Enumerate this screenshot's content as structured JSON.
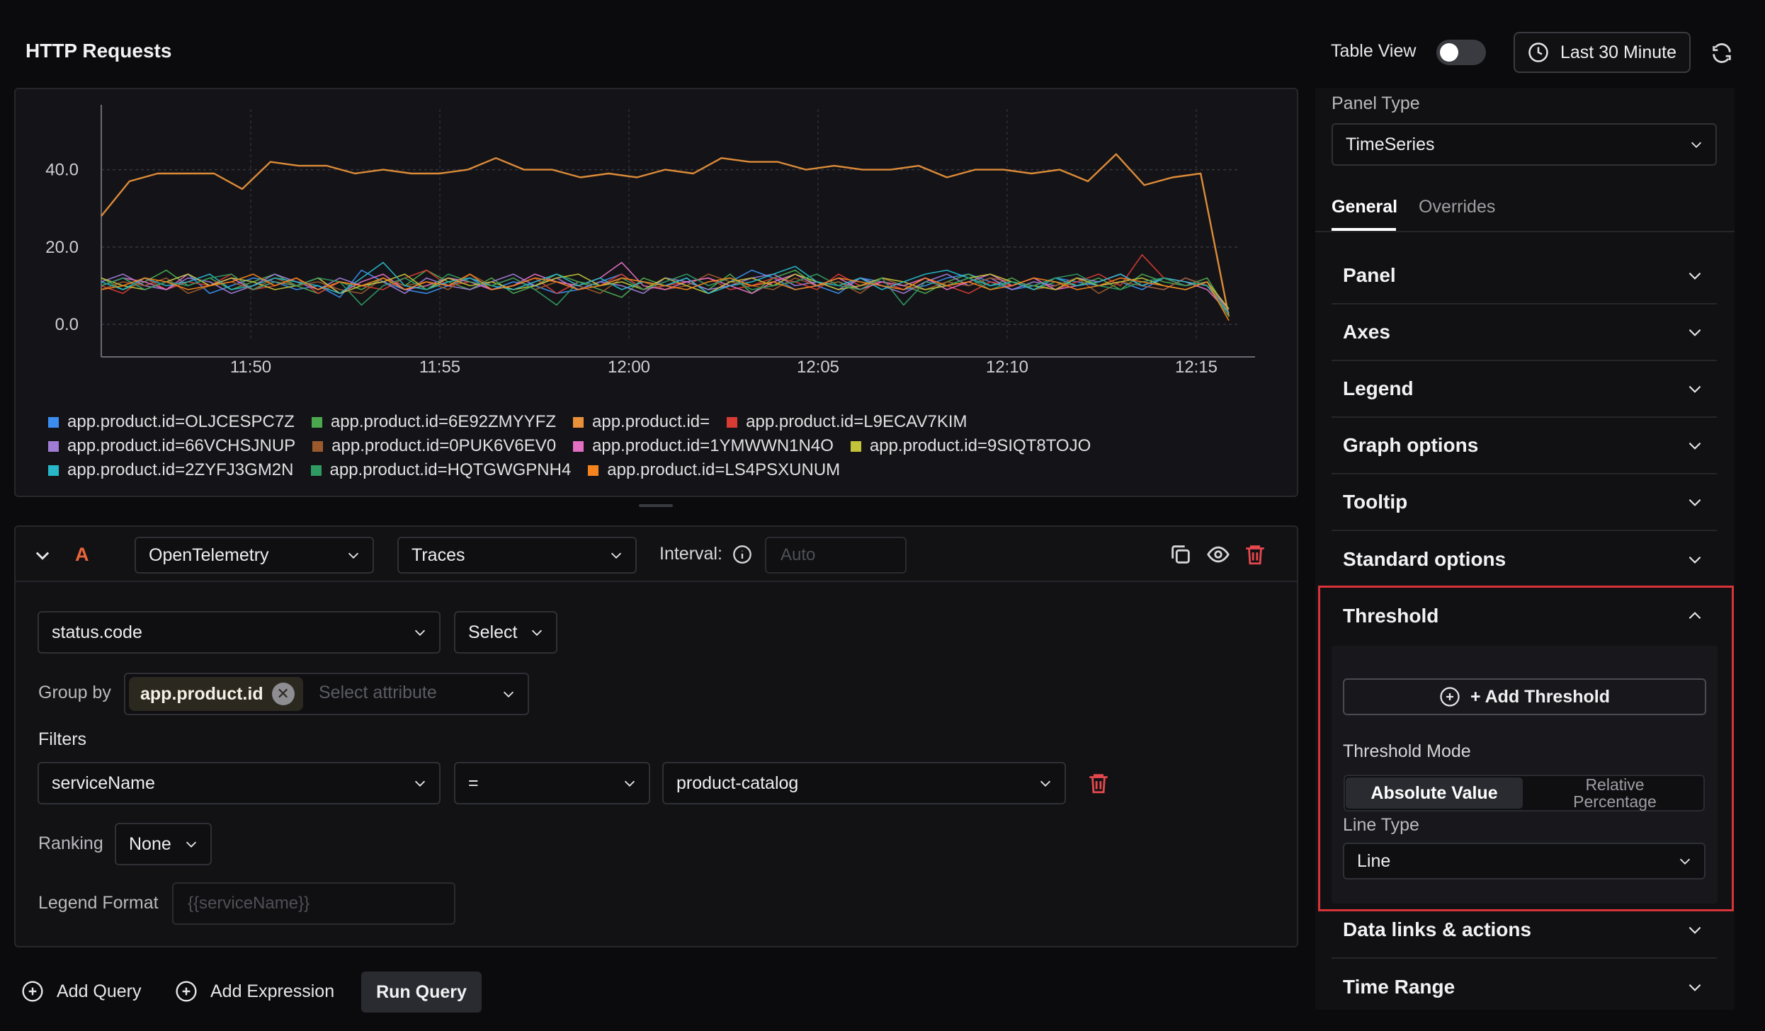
{
  "header": {
    "title": "HTTP Requests",
    "table_view_label": "Table View",
    "time_range": "Last 30 Minute"
  },
  "chart_data": {
    "type": "line",
    "title": "",
    "xlabel": "",
    "ylabel": "",
    "x_ticks": [
      "11:50",
      "11:55",
      "12:00",
      "12:05",
      "12:10",
      "12:15"
    ],
    "y_ticks": [
      "0.0",
      "20.0",
      "40.0"
    ],
    "ylim": [
      -4,
      52
    ],
    "grid": true,
    "legend_position": "bottom-left",
    "series": [
      {
        "name": "app.product.id=OLJCESPC7Z",
        "color": "#3b8ef0",
        "values": [
          10,
          12,
          9,
          11,
          13,
          8,
          10,
          12,
          11,
          9,
          10,
          7,
          14,
          11,
          9,
          8,
          10,
          12,
          9,
          11,
          10,
          8,
          9,
          11,
          13,
          9,
          10,
          12,
          8,
          11,
          14,
          12,
          9,
          10,
          8,
          12,
          11,
          9,
          10,
          12,
          13,
          11,
          9,
          10,
          12,
          11,
          10,
          11,
          9,
          12,
          10,
          11,
          4
        ]
      },
      {
        "name": "app.product.id=6E92ZMYYFZ",
        "color": "#4ca84f",
        "values": [
          12,
          9,
          11,
          14,
          10,
          12,
          9,
          11,
          13,
          10,
          8,
          11,
          9,
          12,
          10,
          14,
          11,
          9,
          12,
          8,
          10,
          13,
          11,
          9,
          7,
          12,
          10,
          11,
          9,
          13,
          8,
          12,
          14,
          10,
          11,
          9,
          12,
          10,
          8,
          11,
          13,
          10,
          12,
          9,
          11,
          10,
          12,
          9,
          13,
          11,
          10,
          12,
          3
        ]
      },
      {
        "name": "app.product.id=",
        "color": "#e8913a",
        "values": [
          28,
          37,
          39,
          39,
          39,
          35,
          42,
          41,
          41,
          39,
          40,
          39,
          39,
          40,
          43,
          40,
          40,
          38,
          39,
          38,
          40,
          39,
          43,
          42,
          42,
          40,
          41,
          40,
          40,
          41,
          38,
          40,
          40,
          39,
          40,
          37,
          44,
          36,
          38,
          39,
          2
        ]
      },
      {
        "name": "app.product.id=L9ECAV7KIM",
        "color": "#d83a34",
        "values": [
          10,
          8,
          12,
          9,
          11,
          10,
          13,
          9,
          10,
          12,
          8,
          11,
          10,
          9,
          12,
          14,
          10,
          11,
          9,
          10,
          12,
          8,
          11,
          10,
          13,
          9,
          10,
          11,
          12,
          9,
          10,
          12,
          11,
          9,
          13,
          10,
          11,
          9,
          12,
          10,
          8,
          11,
          10,
          12,
          9,
          11,
          13,
          10,
          18,
          12,
          10,
          11,
          3
        ]
      },
      {
        "name": "app.product.id=66VCHSJNUP",
        "color": "#a07cd6",
        "values": [
          11,
          13,
          10,
          9,
          12,
          11,
          8,
          10,
          13,
          11,
          9,
          12,
          10,
          11,
          8,
          12,
          10,
          9,
          11,
          13,
          10,
          12,
          9,
          11,
          10,
          8,
          12,
          11,
          9,
          10,
          12,
          13,
          10,
          11,
          9,
          12,
          10,
          8,
          11,
          13,
          10,
          12,
          9,
          11,
          10,
          12,
          11,
          13,
          10,
          9,
          12,
          10,
          4
        ]
      },
      {
        "name": "app.product.id=0PUK6V6EV0",
        "color": "#9c5a2c",
        "values": [
          9,
          11,
          10,
          12,
          8,
          10,
          11,
          9,
          12,
          10,
          11,
          9,
          8,
          12,
          10,
          11,
          9,
          13,
          10,
          12,
          9,
          11,
          10,
          8,
          12,
          11,
          9,
          10,
          13,
          11,
          10,
          9,
          12,
          10,
          11,
          8,
          12,
          10,
          9,
          11,
          10,
          12,
          11,
          9,
          10,
          12,
          8,
          11,
          10,
          9,
          12,
          10,
          2
        ]
      },
      {
        "name": "app.product.id=1YMWWN1N4O",
        "color": "#e36fc3",
        "values": [
          10,
          12,
          11,
          9,
          13,
          10,
          12,
          9,
          11,
          10,
          12,
          8,
          11,
          13,
          9,
          10,
          12,
          11,
          9,
          10,
          13,
          11,
          10,
          12,
          16,
          10,
          9,
          11,
          12,
          10,
          8,
          11,
          13,
          10,
          12,
          9,
          11,
          10,
          12,
          9,
          11,
          13,
          10,
          12,
          9,
          10,
          11,
          13,
          10,
          12,
          11,
          9,
          3
        ]
      },
      {
        "name": "app.product.id=9SIQT8TOJO",
        "color": "#c3c33a",
        "values": [
          12,
          10,
          9,
          11,
          13,
          10,
          12,
          11,
          9,
          10,
          12,
          8,
          10,
          11,
          13,
          9,
          12,
          10,
          11,
          9,
          10,
          12,
          13,
          10,
          11,
          9,
          12,
          10,
          8,
          11,
          12,
          10,
          13,
          11,
          9,
          10,
          12,
          11,
          9,
          10,
          12,
          13,
          11,
          10,
          9,
          12,
          10,
          11,
          12,
          10,
          9,
          11,
          4
        ]
      },
      {
        "name": "app.product.id=2ZYFJ3GM2N",
        "color": "#27b7c8",
        "values": [
          11,
          9,
          12,
          10,
          11,
          13,
          9,
          10,
          12,
          11,
          10,
          8,
          12,
          16,
          10,
          9,
          11,
          12,
          10,
          9,
          11,
          13,
          10,
          12,
          9,
          11,
          10,
          12,
          8,
          10,
          11,
          13,
          15,
          11,
          10,
          12,
          9,
          11,
          13,
          14,
          12,
          10,
          11,
          9,
          12,
          10,
          11,
          13,
          10,
          12,
          11,
          10,
          3
        ]
      },
      {
        "name": "app.product.id=HQTGWGPNH4",
        "color": "#2f9a62",
        "values": [
          10,
          12,
          9,
          11,
          10,
          12,
          13,
          9,
          11,
          10,
          12,
          11,
          5,
          10,
          12,
          9,
          13,
          11,
          10,
          12,
          9,
          5,
          11,
          10,
          12,
          9,
          11,
          13,
          10,
          12,
          9,
          10,
          11,
          13,
          10,
          9,
          12,
          5,
          11,
          10,
          12,
          9,
          11,
          10,
          12,
          13,
          10,
          9,
          11,
          12,
          10,
          11,
          2
        ]
      },
      {
        "name": "app.product.id=LS4PSXUNUM",
        "color": "#f5841e",
        "values": [
          9,
          10,
          12,
          11,
          9,
          10,
          11,
          13,
          10,
          12,
          9,
          11,
          10,
          12,
          9,
          11,
          10,
          13,
          9,
          10,
          12,
          11,
          9,
          10,
          12,
          11,
          10,
          9,
          11,
          12,
          10,
          11,
          9,
          10,
          12,
          11,
          10,
          9,
          12,
          10,
          11,
          9,
          10,
          12,
          11,
          9,
          10,
          12,
          11,
          10,
          9,
          11,
          1
        ]
      }
    ]
  },
  "query": {
    "label": "A",
    "source": "OpenTelemetry",
    "signal": "Traces",
    "interval_label": "Interval:",
    "interval_placeholder": "Auto",
    "attribute": "status.code",
    "aggregate": "Select",
    "group_by_label": "Group by",
    "group_by_chip": "app.product.id",
    "group_by_placeholder": "Select attribute",
    "filters_label": "Filters",
    "filter_key": "serviceName",
    "filter_op": "=",
    "filter_value": "product-catalog",
    "ranking_label": "Ranking",
    "ranking_value": "None",
    "legend_format_label": "Legend Format",
    "legend_format_placeholder": "{{serviceName}}"
  },
  "footer": {
    "add_query": "Add Query",
    "add_expression": "Add Expression",
    "run_query": "Run Query"
  },
  "settings": {
    "panel_type_label": "Panel Type",
    "panel_type_value": "TimeSeries",
    "tabs": [
      "General",
      "Overrides"
    ],
    "sections": [
      "Panel",
      "Axes",
      "Legend",
      "Graph options",
      "Tooltip",
      "Standard options"
    ],
    "threshold": {
      "title": "Threshold",
      "add_button": "+ Add Threshold",
      "mode_label": "Threshold Mode",
      "mode_absolute": "Absolute Value",
      "mode_relative_line1": "Relative",
      "mode_relative_line2": "Percentage",
      "line_type_label": "Line Type",
      "line_type_value": "Line"
    },
    "sections_after": [
      "Data links & actions",
      "Time Range"
    ]
  }
}
